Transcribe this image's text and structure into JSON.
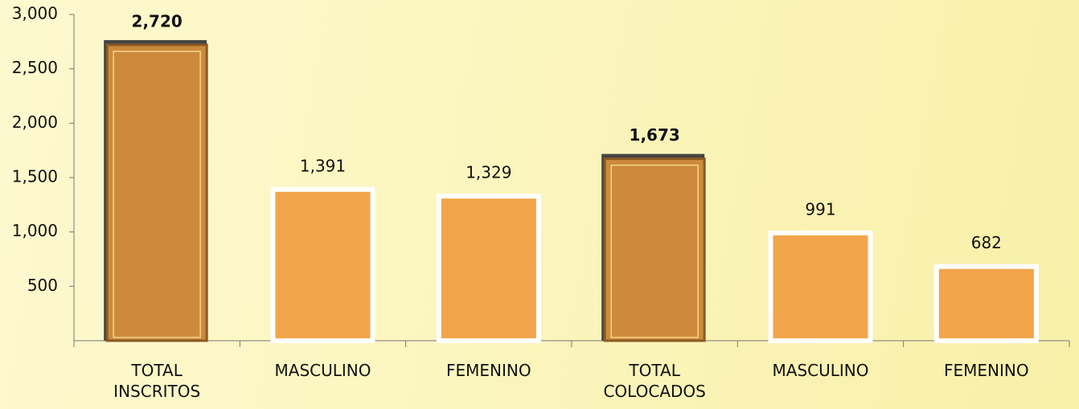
{
  "chart_data": {
    "type": "bar",
    "categories": [
      "TOTAL INSCRITOS",
      "MASCULINO",
      "FEMENINO",
      "TOTAL COLOCADOS",
      "MASCULINO",
      "FEMENINO"
    ],
    "values": [
      2720,
      1391,
      1329,
      1673,
      991,
      682
    ],
    "value_labels": [
      "2,720",
      "1,391",
      "1,329",
      "1,673",
      "991",
      "682"
    ],
    "colors": [
      "#cd8a3c",
      "#f2a54a",
      "#f2a54a",
      "#cd8a3c",
      "#f2a54a",
      "#f2a54a"
    ],
    "ylim": [
      0,
      3000
    ],
    "yticks": [
      {
        "value": 500,
        "label": "500"
      },
      {
        "value": 1000,
        "label": "1,000"
      },
      {
        "value": 1500,
        "label": "1,500"
      },
      {
        "value": 2000,
        "label": "2,000"
      },
      {
        "value": 2500,
        "label": "2,500"
      },
      {
        "value": 3000,
        "label": "3,000"
      }
    ],
    "grid": false
  }
}
